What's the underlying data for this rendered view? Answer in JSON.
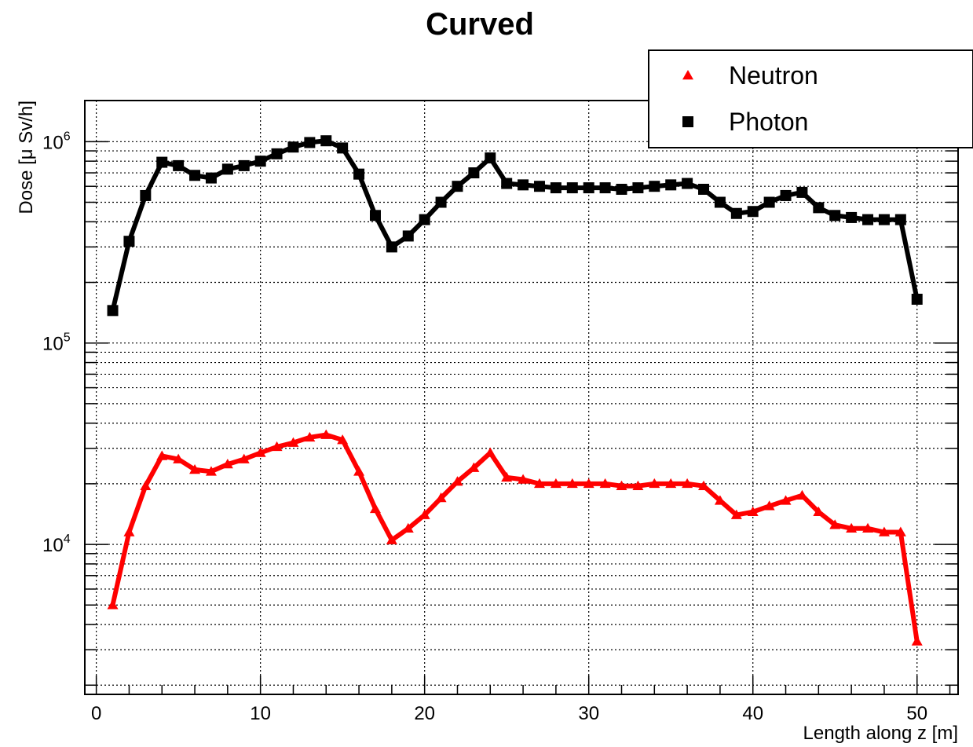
{
  "chart_data": {
    "type": "line",
    "title": "Curved",
    "xlabel": "Length along z [m]",
    "ylabel": "Dose [μ Sv/h]",
    "xlim": [
      -0.7,
      52.5
    ],
    "ylim": [
      1800,
      1600000
    ],
    "yscale": "log",
    "grid": true,
    "legend_position": "top-right",
    "x_ticks": [
      {
        "value": 0,
        "label": "0"
      },
      {
        "value": 10,
        "label": "10"
      },
      {
        "value": 20,
        "label": "20"
      },
      {
        "value": 30,
        "label": "30"
      },
      {
        "value": 40,
        "label": "40"
      },
      {
        "value": 50,
        "label": "50"
      }
    ],
    "y_ticks": [
      {
        "value": 10000,
        "base": "10",
        "exp": "4"
      },
      {
        "value": 100000,
        "base": "10",
        "exp": "5"
      },
      {
        "value": 1000000,
        "base": "10",
        "exp": "6"
      }
    ],
    "x": [
      1,
      2,
      3,
      4,
      5,
      6,
      7,
      8,
      9,
      10,
      11,
      12,
      13,
      14,
      15,
      16,
      17,
      18,
      19,
      20,
      21,
      22,
      23,
      24,
      25,
      26,
      27,
      28,
      29,
      30,
      31,
      32,
      33,
      34,
      35,
      36,
      37,
      38,
      39,
      40,
      41,
      42,
      43,
      44,
      45,
      46,
      47,
      48,
      49,
      50
    ],
    "series": [
      {
        "name": "Neutron",
        "color": "#ff0000",
        "marker": "triangle",
        "values": [
          5000,
          11500,
          19500,
          27500,
          26500,
          23500,
          23000,
          25000,
          26500,
          28500,
          30500,
          32000,
          34000,
          35000,
          33000,
          23000,
          15000,
          10500,
          12000,
          14000,
          17000,
          20500,
          24000,
          28500,
          21500,
          21000,
          20000,
          20000,
          20000,
          20000,
          20000,
          19500,
          19500,
          20000,
          20000,
          20000,
          19500,
          16500,
          14000,
          14500,
          15500,
          16500,
          17500,
          14500,
          12500,
          12000,
          12000,
          11500,
          11500,
          3300
        ]
      },
      {
        "name": "Photon",
        "color": "#000000",
        "marker": "square",
        "values": [
          145000,
          320000,
          540000,
          790000,
          760000,
          680000,
          660000,
          730000,
          760000,
          800000,
          870000,
          940000,
          990000,
          1010000,
          930000,
          690000,
          430000,
          300000,
          340000,
          410000,
          500000,
          600000,
          700000,
          830000,
          620000,
          610000,
          600000,
          590000,
          590000,
          590000,
          590000,
          580000,
          590000,
          600000,
          610000,
          620000,
          580000,
          500000,
          440000,
          450000,
          500000,
          540000,
          560000,
          470000,
          430000,
          420000,
          410000,
          410000,
          410000,
          165000
        ]
      }
    ]
  }
}
